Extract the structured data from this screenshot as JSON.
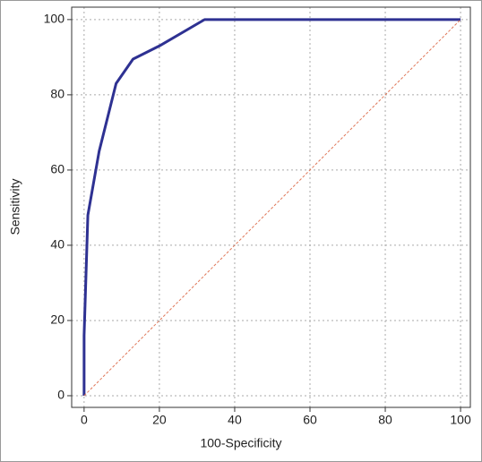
{
  "chart_data": {
    "type": "line",
    "x_label": "100-Specificity",
    "y_label": "Sensitivity",
    "series": [
      {
        "color": "#2e3192",
        "x": [
          0,
          0,
          1,
          4,
          8.5,
          13,
          20,
          32,
          100
        ],
        "values": [
          0,
          16,
          48,
          65,
          83,
          89.5,
          93,
          100,
          100
        ]
      },
      {
        "color": "#e0785a",
        "x": [
          0,
          100
        ],
        "values": [
          0,
          100
        ],
        "dashed": true
      }
    ],
    "xlim": [
      -3.3,
      102.6
    ],
    "ylim": [
      -3.1,
      103.3
    ],
    "xticks": [
      0,
      20,
      40,
      60,
      80,
      100
    ],
    "yticks": [
      0,
      20,
      40,
      60,
      80,
      100
    ],
    "grid": true
  }
}
